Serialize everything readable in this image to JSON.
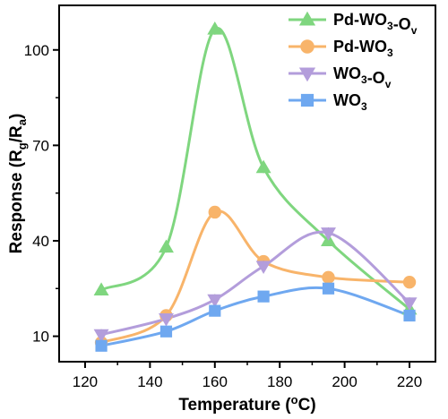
{
  "chart_data": {
    "type": "line",
    "title": "",
    "xlabel": "Temperature (ºC)",
    "xlabel_parts": {
      "main": "Temperature (",
      "sup": "o",
      "tail": "C)"
    },
    "ylabel": "Response (Rg/Ra)",
    "ylabel_parts": {
      "main": "Response (R",
      "sub1": "g",
      "mid": "/R",
      "sub2": "a",
      "tail": ")"
    },
    "xlim": [
      112,
      228
    ],
    "ylim": [
      2,
      114
    ],
    "x_ticks": [
      120,
      140,
      160,
      180,
      200,
      220
    ],
    "y_ticks": [
      10,
      40,
      70,
      100
    ],
    "grid": false,
    "legend_position": "top-right",
    "series": [
      {
        "name": "Pd-WO3-Ov",
        "name_parts": [
          {
            "t": "Pd-WO",
            "s": ""
          },
          {
            "t": "3",
            "s": "sub"
          },
          {
            "t": "-O",
            "s": ""
          },
          {
            "t": "v",
            "s": "sub"
          }
        ],
        "color": "#7fd67f",
        "marker": "triangle-up",
        "x": [
          125,
          145,
          160,
          175,
          195,
          220
        ],
        "y": [
          24.5,
          38,
          106.5,
          63,
          40,
          18.5
        ]
      },
      {
        "name": "Pd-WO3",
        "name_parts": [
          {
            "t": "Pd-WO",
            "s": ""
          },
          {
            "t": "3",
            "s": "sub"
          }
        ],
        "color": "#f8b46a",
        "marker": "circle",
        "x": [
          125,
          145,
          160,
          175,
          195,
          220
        ],
        "y": [
          8,
          16.5,
          49,
          33.5,
          28.5,
          27
        ]
      },
      {
        "name": "WO3-Ov",
        "name_parts": [
          {
            "t": "WO",
            "s": ""
          },
          {
            "t": "3",
            "s": "sub"
          },
          {
            "t": "-O",
            "s": ""
          },
          {
            "t": "v",
            "s": "sub"
          }
        ],
        "color": "#b39ddb",
        "marker": "triangle-down",
        "x": [
          125,
          145,
          160,
          175,
          195,
          220
        ],
        "y": [
          10.5,
          15.5,
          21.5,
          32,
          42.5,
          20.5
        ]
      },
      {
        "name": "WO3",
        "name_parts": [
          {
            "t": "WO",
            "s": ""
          },
          {
            "t": "3",
            "s": "sub"
          }
        ],
        "color": "#6fa8f0",
        "marker": "square",
        "x": [
          125,
          145,
          160,
          175,
          195,
          220
        ],
        "y": [
          7,
          11.5,
          18,
          22.5,
          25,
          16.5
        ]
      }
    ]
  }
}
